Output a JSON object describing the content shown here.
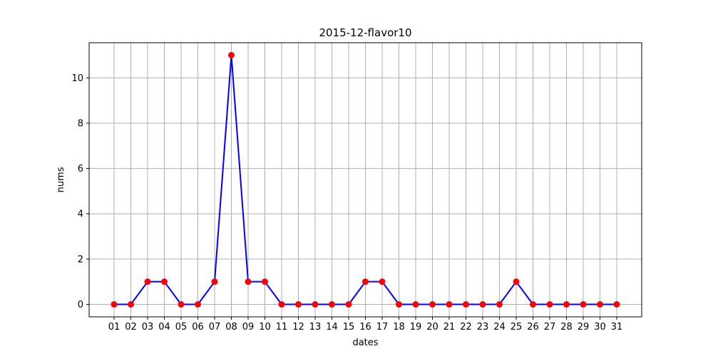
{
  "chart_data": {
    "type": "line",
    "title": "2015-12-flavor10",
    "xlabel": "dates",
    "ylabel": "nums",
    "categories": [
      "01",
      "02",
      "03",
      "04",
      "05",
      "06",
      "07",
      "08",
      "09",
      "10",
      "11",
      "12",
      "13",
      "14",
      "15",
      "16",
      "17",
      "18",
      "19",
      "20",
      "21",
      "22",
      "23",
      "24",
      "25",
      "26",
      "27",
      "28",
      "29",
      "30",
      "31"
    ],
    "series": [
      {
        "values": [
          0,
          0,
          1,
          1,
          0,
          0,
          1,
          11,
          1,
          1,
          0,
          0,
          0,
          0,
          0,
          1,
          1,
          0,
          0,
          0,
          0,
          0,
          0,
          0,
          1,
          0,
          0,
          0,
          0,
          0,
          0
        ],
        "line_color": "#0000ff",
        "marker_color": "#ff0000"
      }
    ],
    "ylim": [
      -0.55,
      11.55
    ],
    "yticks": [
      0,
      2,
      4,
      6,
      8,
      10
    ],
    "grid": true,
    "legend": "none"
  }
}
